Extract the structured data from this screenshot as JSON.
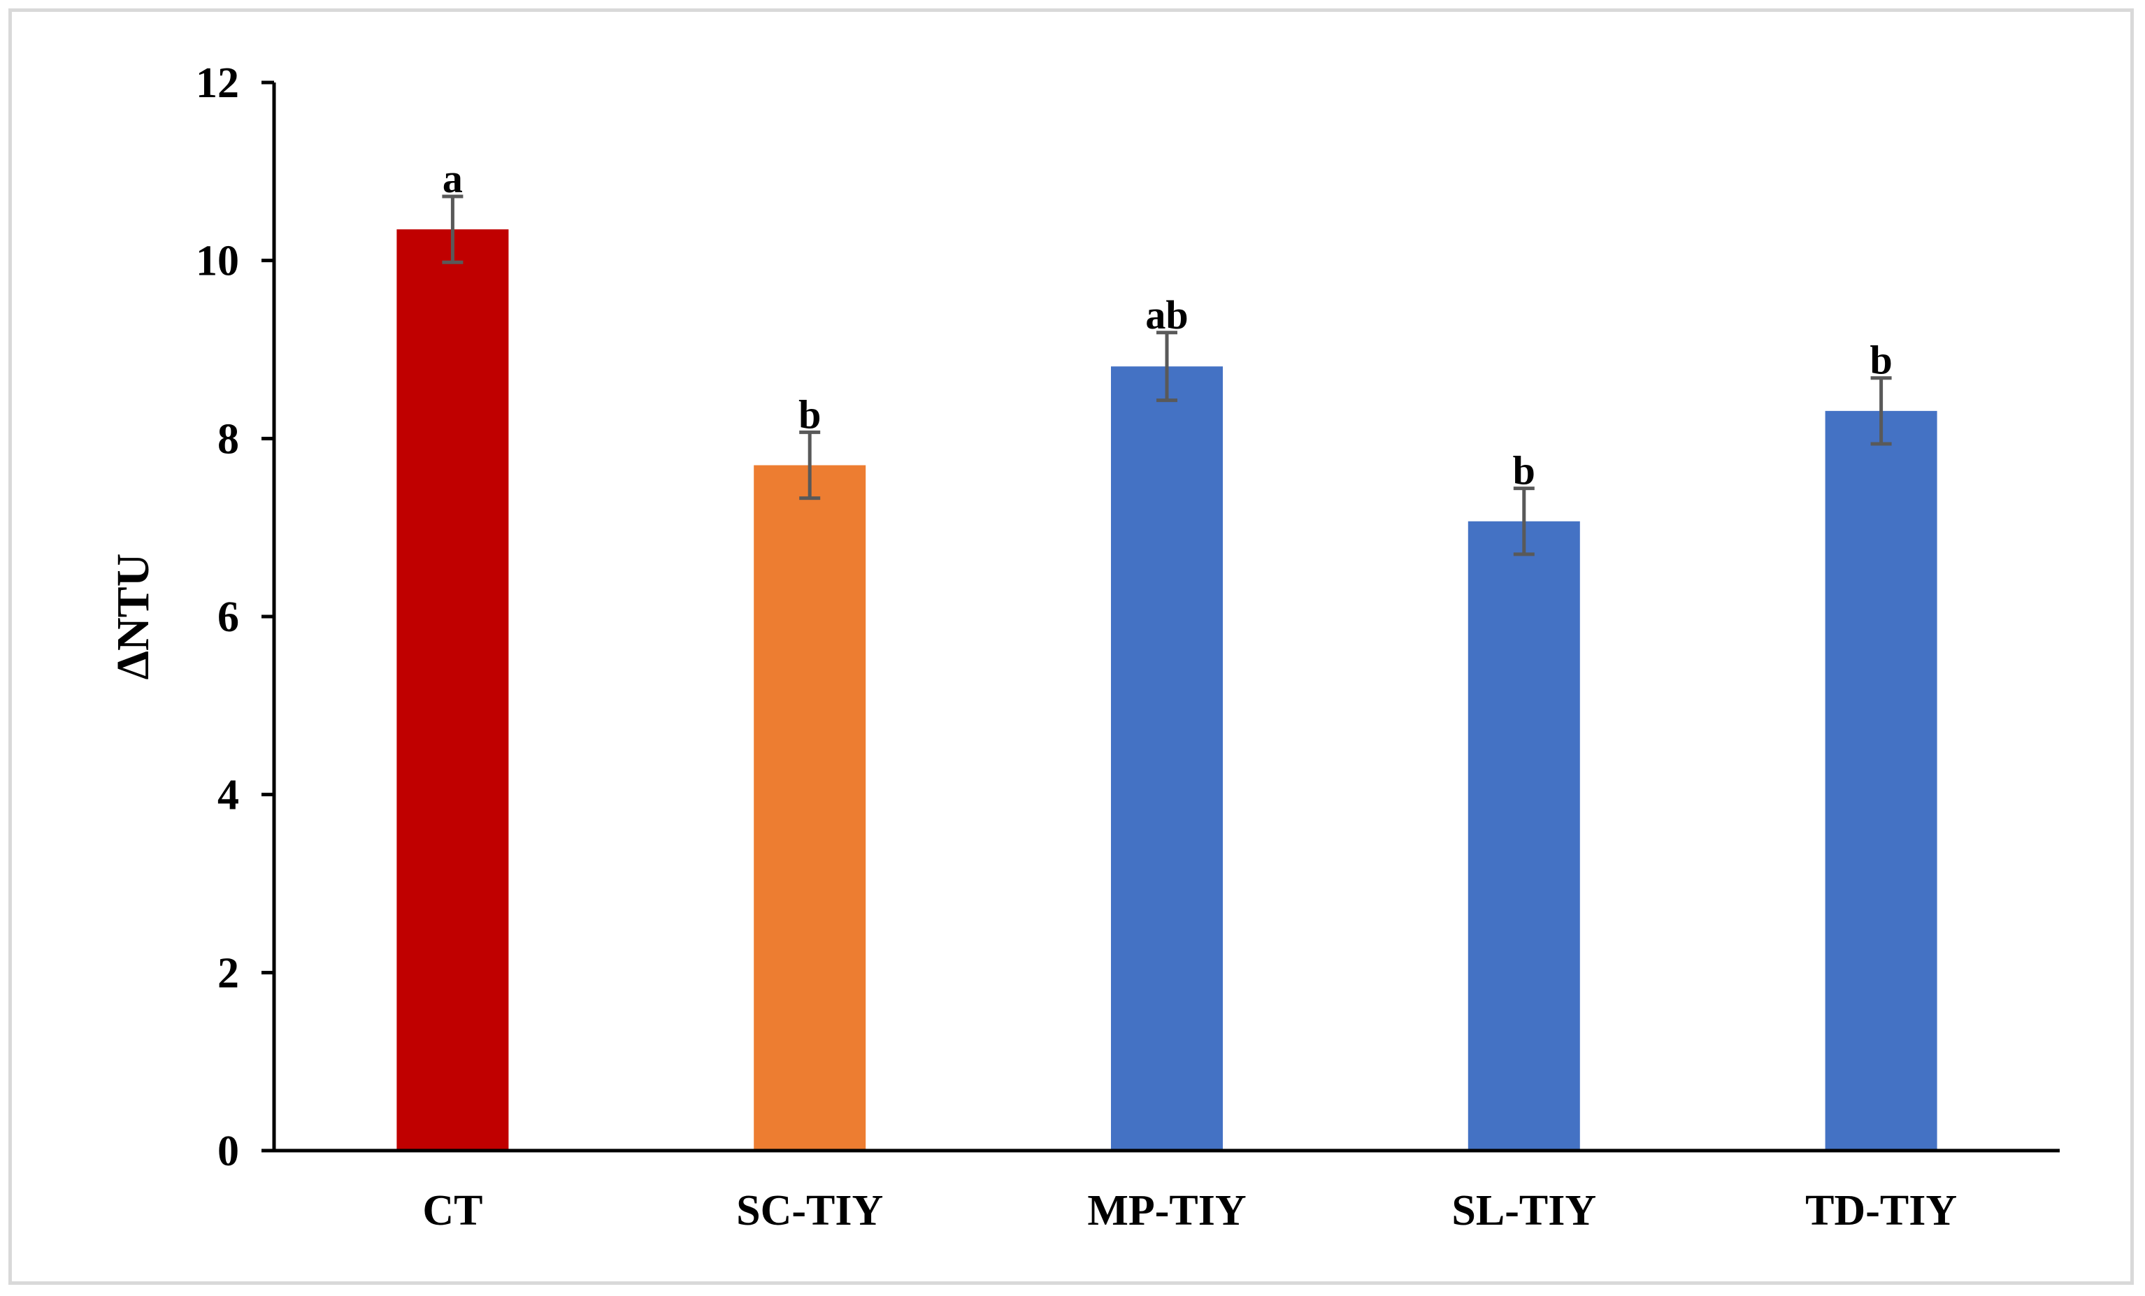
{
  "chart_data": {
    "type": "bar",
    "title": "",
    "xlabel": "",
    "ylabel": "ΔNTU",
    "ylim": [
      0,
      12
    ],
    "yticks": [
      0,
      2,
      4,
      6,
      8,
      10,
      12
    ],
    "grid": false,
    "legend": "none",
    "categories": [
      "CT",
      "SC-TIY",
      "MP-TIY",
      "SL-TIY",
      "TD-TIY"
    ],
    "values": [
      10.35,
      7.7,
      8.81,
      7.07,
      8.31
    ],
    "errors": [
      0.37,
      0.37,
      0.38,
      0.37,
      0.37
    ],
    "significance": [
      "a",
      "b",
      "ab",
      "b",
      "b"
    ],
    "colors": [
      "#c00000",
      "#ed7d31",
      "#4472c4",
      "#4472c4",
      "#4472c4"
    ],
    "axis_color": "#000000",
    "error_bar_color": "#595959",
    "frame_color": "#d9d9d9"
  }
}
